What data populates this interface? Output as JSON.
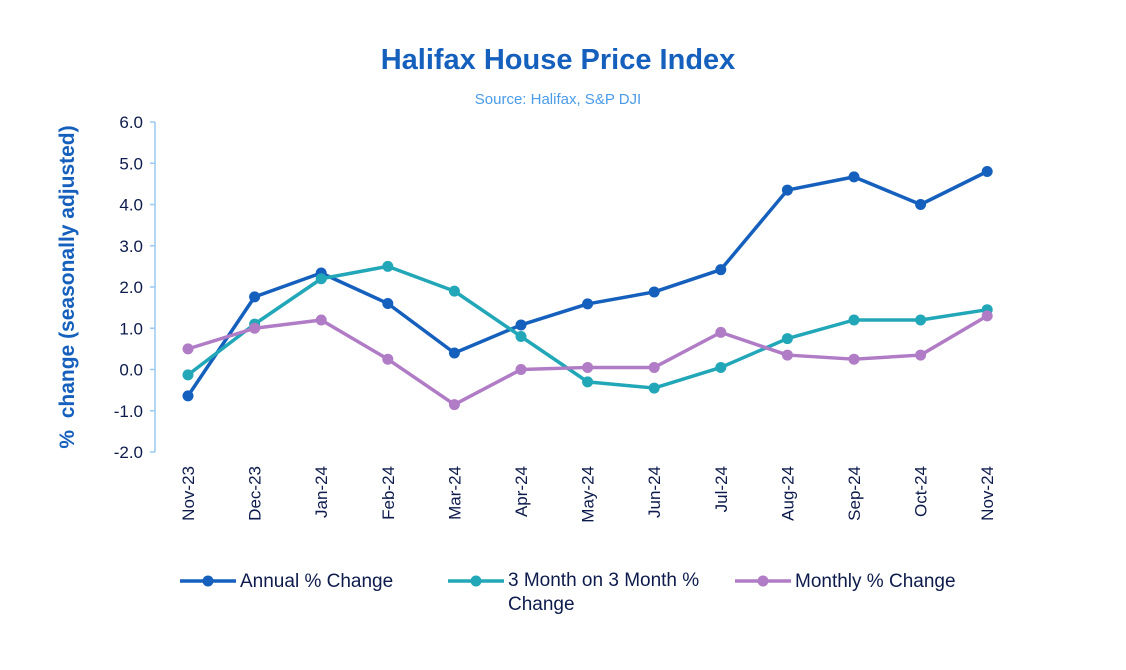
{
  "chart_data": {
    "type": "line",
    "title": "Halifax House Price Index",
    "subtitle": "Source: Halifax,  S&P DJI",
    "ylabel": "%  change (seasonally adjusted)",
    "xlabel": "",
    "ylim": [
      -2.0,
      6.0
    ],
    "yticks": [
      "6.0",
      "5.0",
      "4.0",
      "3.0",
      "2.0",
      "1.0",
      "0.0",
      "-1.0",
      "-2.0"
    ],
    "grid": false,
    "legend": "bottom",
    "categories": [
      "Nov-23",
      "Dec-23",
      "Jan-24",
      "Feb-24",
      "Mar-24",
      "Apr-24",
      "May-24",
      "Jun-24",
      "Jul-24",
      "Aug-24",
      "Sep-24",
      "Oct-24",
      "Nov-24"
    ],
    "series": [
      {
        "name": "Annual % Change",
        "color": "#1560BD",
        "values": [
          -0.64,
          1.76,
          2.34,
          1.6,
          0.4,
          1.08,
          1.59,
          1.88,
          2.42,
          4.35,
          4.67,
          4.0,
          4.8
        ]
      },
      {
        "name": "3 Month on 3 Month % Change",
        "color": "#22A7B8",
        "values": [
          -0.13,
          1.1,
          2.2,
          2.5,
          1.9,
          0.8,
          -0.3,
          -0.45,
          0.05,
          0.75,
          1.2,
          1.2,
          1.45
        ]
      },
      {
        "name": "Monthly % Change",
        "color": "#B07CC6",
        "values": [
          0.5,
          1.0,
          1.2,
          0.25,
          -0.85,
          0.0,
          0.05,
          0.05,
          0.9,
          0.35,
          0.25,
          0.35,
          1.3
        ]
      }
    ]
  }
}
